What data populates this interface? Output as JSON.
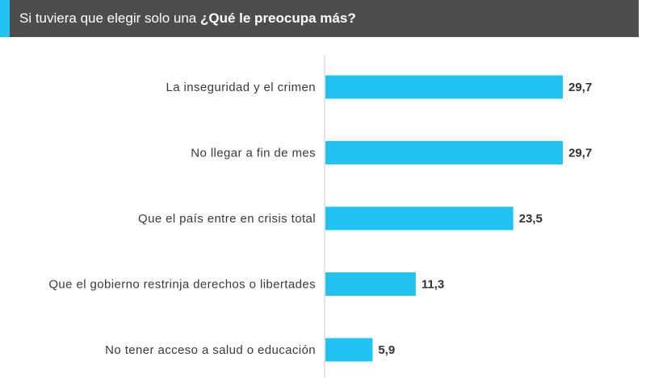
{
  "header": {
    "title_regular": "Si tuviera que elegir solo una",
    "title_bold": "¿Qué le preocupa más?"
  },
  "colors": {
    "header_bg": "#4d4d4d",
    "accent": "#1fc4f4",
    "bar": "#1fc4f4",
    "axis": "#cccccc"
  },
  "chart_data": {
    "type": "bar",
    "orientation": "horizontal",
    "title": "Si tuviera que elegir solo una ¿Qué le preocupa más?",
    "categories": [
      "La inseguridad y el crimen",
      "No llegar a fin de mes",
      "Que el país entre en crisis total",
      "Que el gobierno restrinja derechos o libertades",
      "No tener acceso a salud o educación"
    ],
    "values": [
      29.7,
      29.7,
      23.5,
      11.3,
      5.9
    ],
    "value_labels": [
      "29,7",
      "29,7",
      "23,5",
      "11,3",
      "5,9"
    ],
    "xlabel": "",
    "ylabel": "",
    "xlim": [
      0,
      30
    ],
    "grid": false,
    "legend": "none"
  }
}
